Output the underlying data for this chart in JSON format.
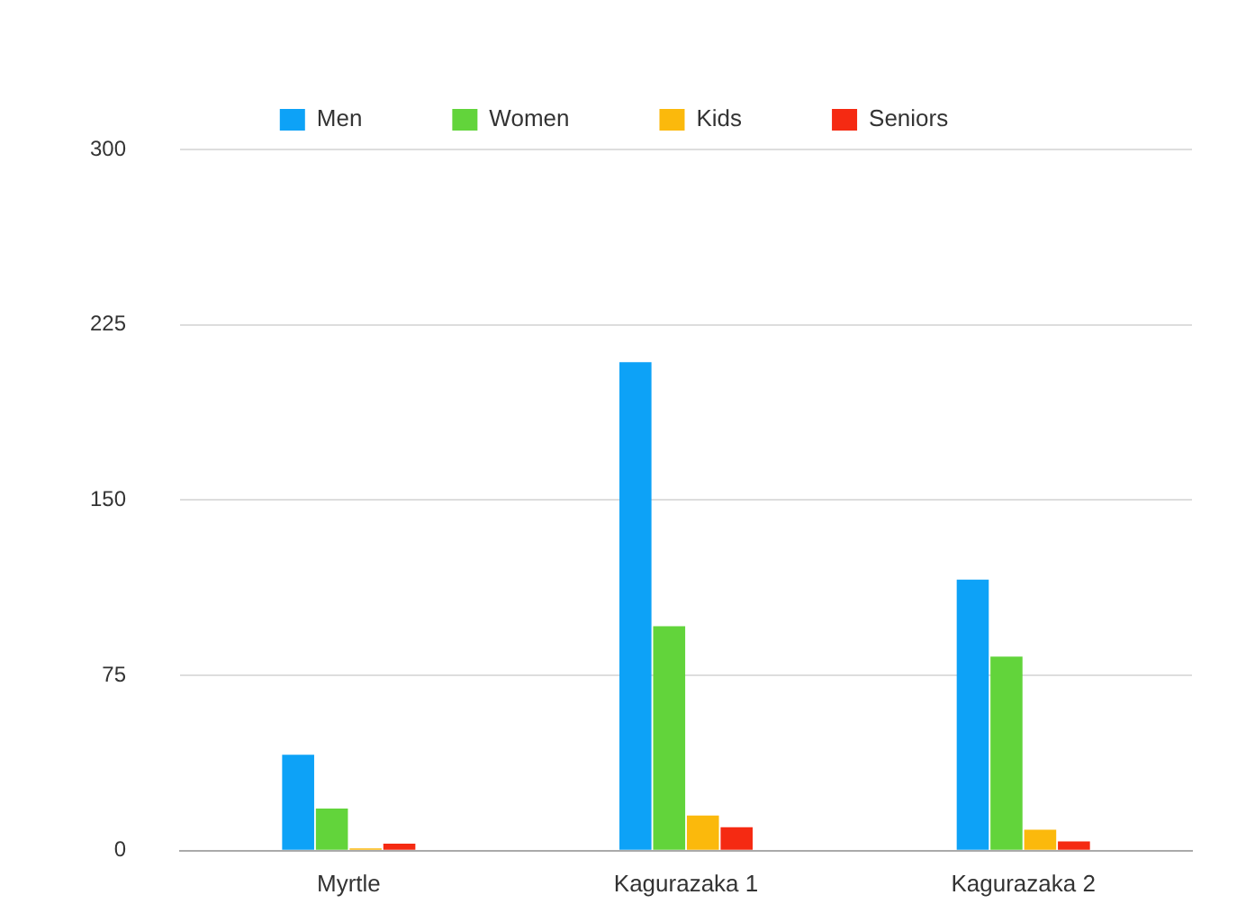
{
  "chart_data": {
    "type": "bar",
    "categories": [
      "Myrtle",
      "Kagurazaka 1",
      "Kagurazaka 2"
    ],
    "series": [
      {
        "name": "Men",
        "color": "#0da2f7",
        "values": [
          41,
          209,
          116
        ]
      },
      {
        "name": "Women",
        "color": "#62d43b",
        "values": [
          18,
          96,
          83
        ]
      },
      {
        "name": "Kids",
        "color": "#fbb90c",
        "values": [
          1,
          15,
          9
        ]
      },
      {
        "name": "Seniors",
        "color": "#f52a12",
        "values": [
          3,
          10,
          4
        ]
      }
    ],
    "ylim": [
      0,
      300
    ],
    "yticks": [
      0,
      75,
      150,
      225,
      300
    ],
    "grid": "y",
    "legend": "top"
  }
}
